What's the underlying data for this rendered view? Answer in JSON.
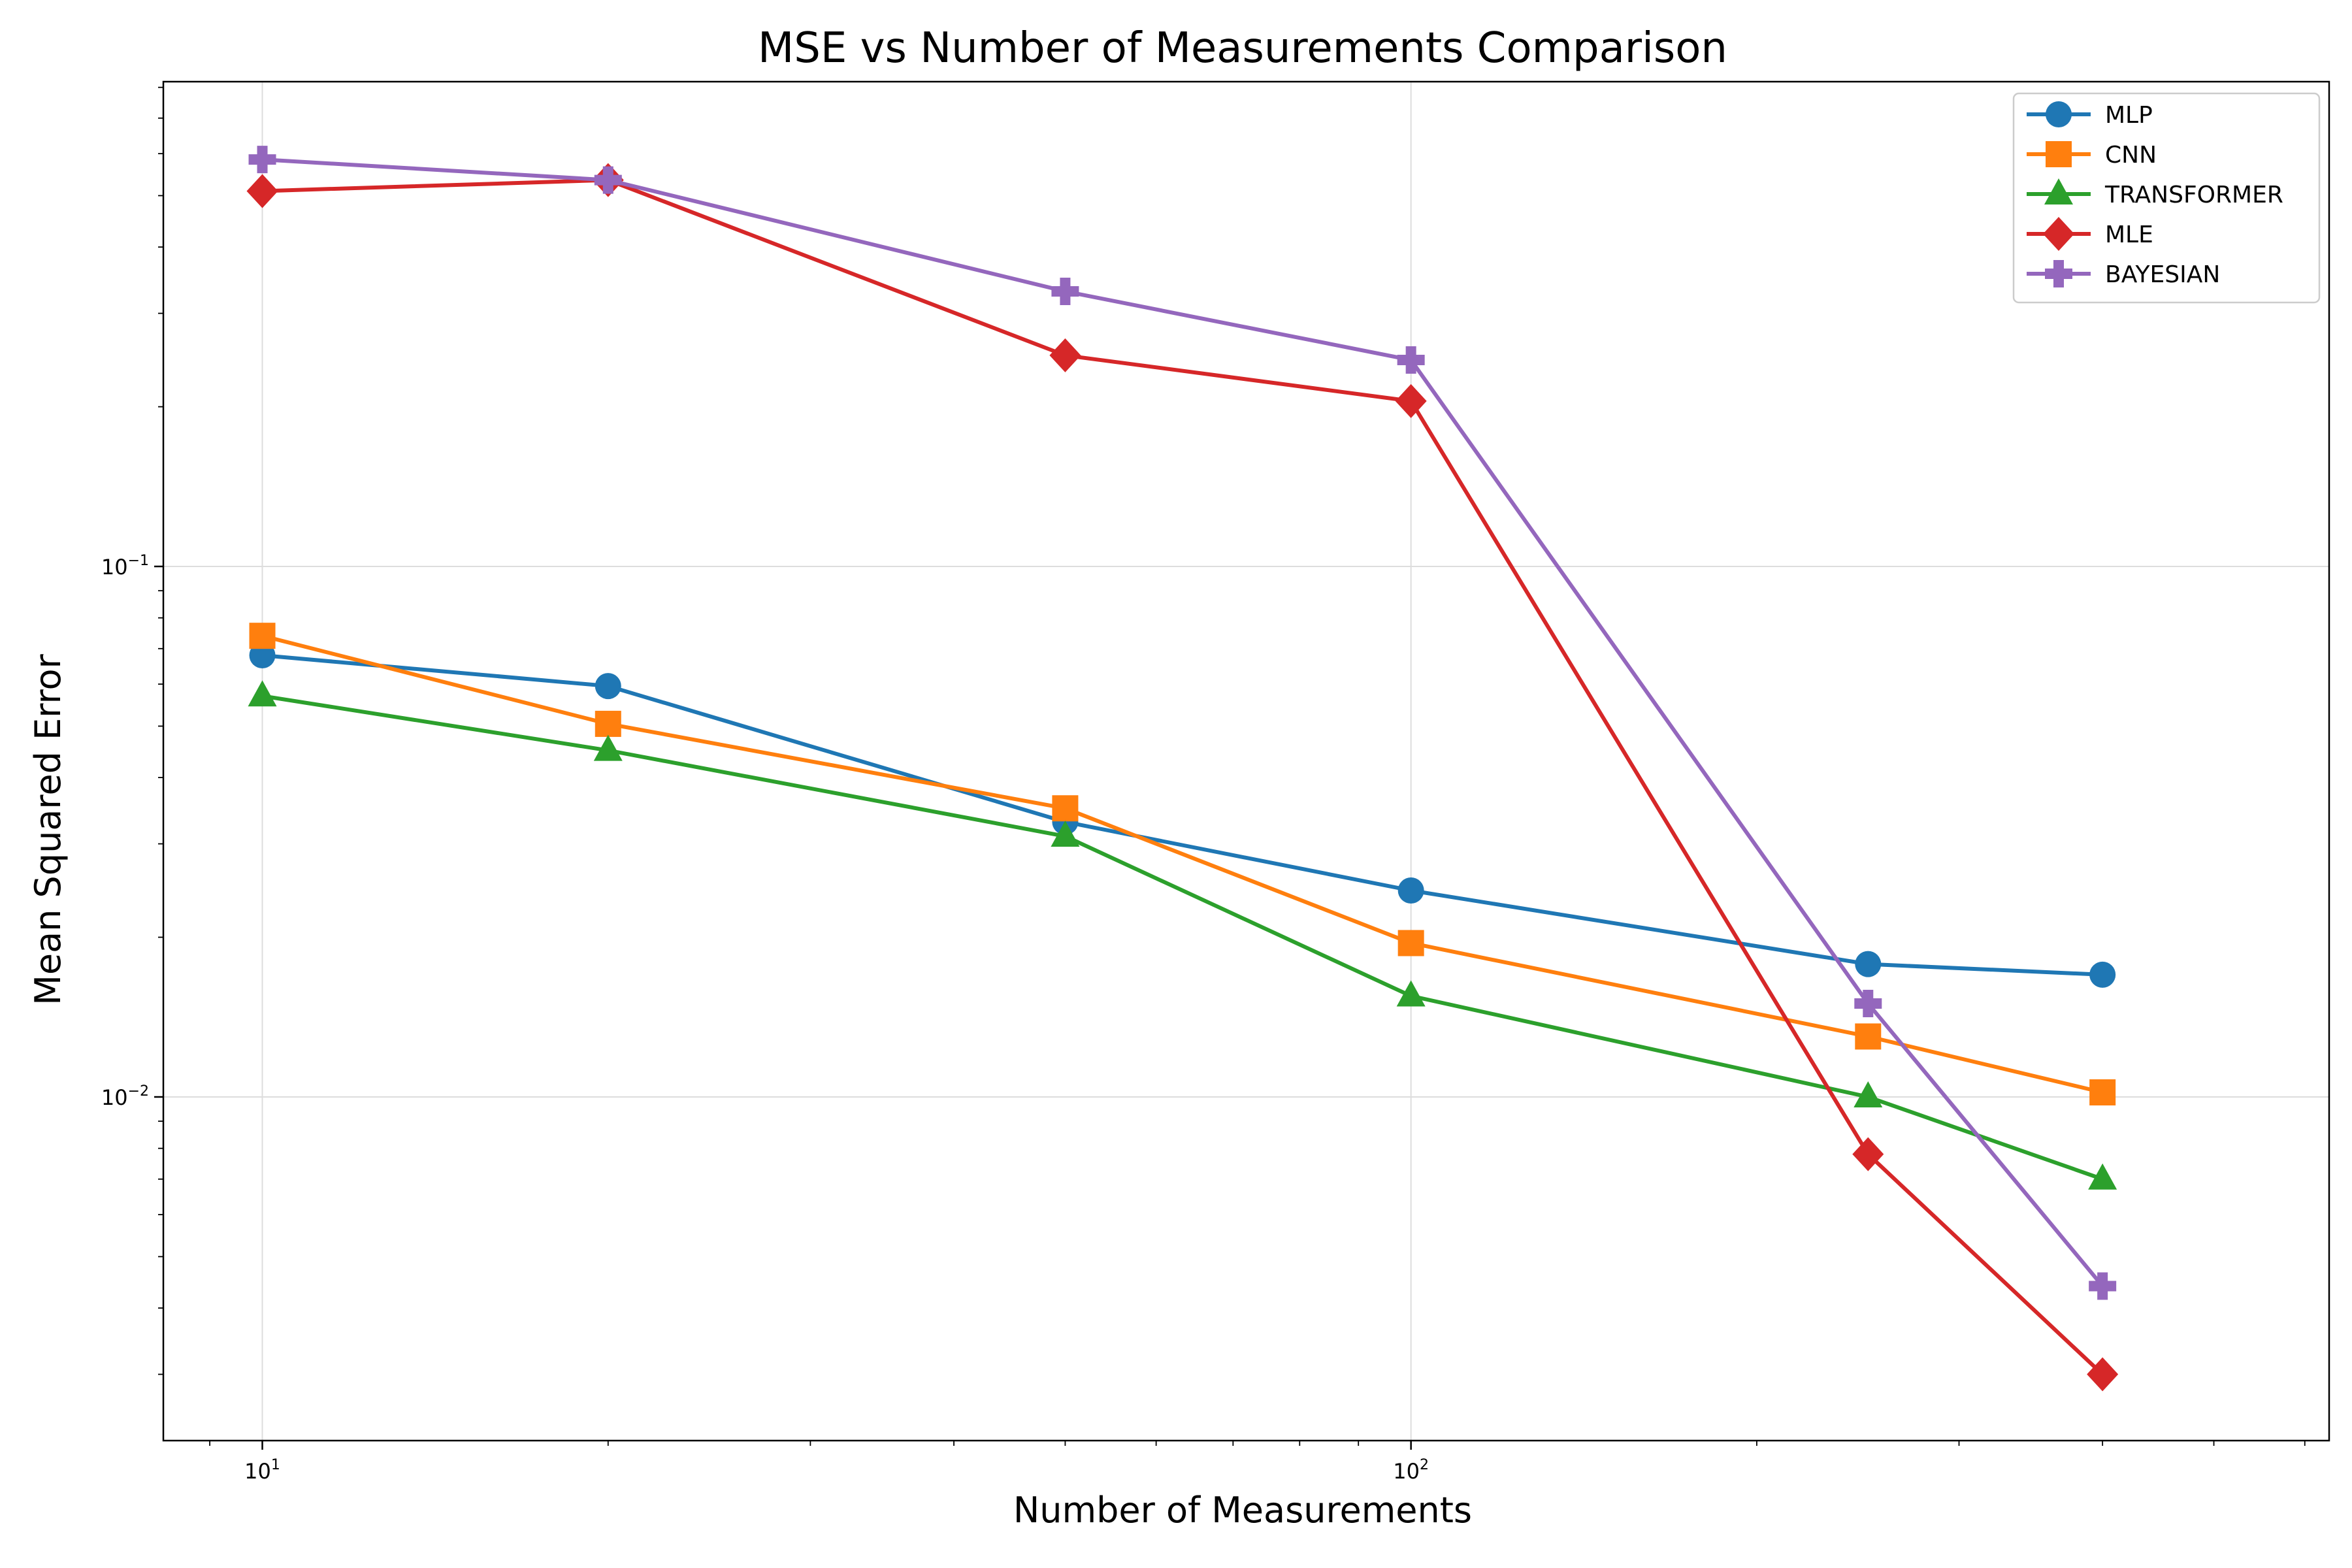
{
  "chart_data": {
    "type": "line",
    "title": "MSE vs Number of Measurements Comparison",
    "xlabel": "Number of Measurements",
    "ylabel": "Mean Squared Error",
    "xscale": "log",
    "yscale": "log",
    "xlim": [
      8.2,
      630
    ],
    "ylim": [
      0.00225,
      0.82
    ],
    "x": [
      10,
      20,
      50,
      100,
      250,
      400
    ],
    "x_ticks": [
      {
        "value": 10,
        "base": "10",
        "exp": "1"
      },
      {
        "value": 100,
        "base": "10",
        "exp": "2"
      }
    ],
    "y_ticks": [
      {
        "value": 0.1,
        "base": "10",
        "exp": "−1"
      },
      {
        "value": 0.01,
        "base": "10",
        "exp": "−2"
      }
    ],
    "grid": true,
    "legend_position": "top-right",
    "series": [
      {
        "name": "MLP",
        "color": "#1f77b4",
        "marker": "circle",
        "values": [
          0.068,
          0.0595,
          0.033,
          0.0245,
          0.0178,
          0.017
        ]
      },
      {
        "name": "CNN",
        "color": "#ff7f0e",
        "marker": "square",
        "values": [
          0.074,
          0.0505,
          0.035,
          0.0195,
          0.013,
          0.0102
        ]
      },
      {
        "name": "TRANSFORMER",
        "color": "#2ca02c",
        "marker": "triangle",
        "values": [
          0.057,
          0.045,
          0.031,
          0.0155,
          0.01,
          0.007
        ]
      },
      {
        "name": "MLE",
        "color": "#d62728",
        "marker": "diamond",
        "values": [
          0.51,
          0.535,
          0.25,
          0.205,
          0.0078,
          0.003
        ]
      },
      {
        "name": "BAYESIAN",
        "color": "#9467bd",
        "marker": "plus",
        "values": [
          0.585,
          0.535,
          0.33,
          0.245,
          0.015,
          0.0044
        ]
      }
    ]
  }
}
